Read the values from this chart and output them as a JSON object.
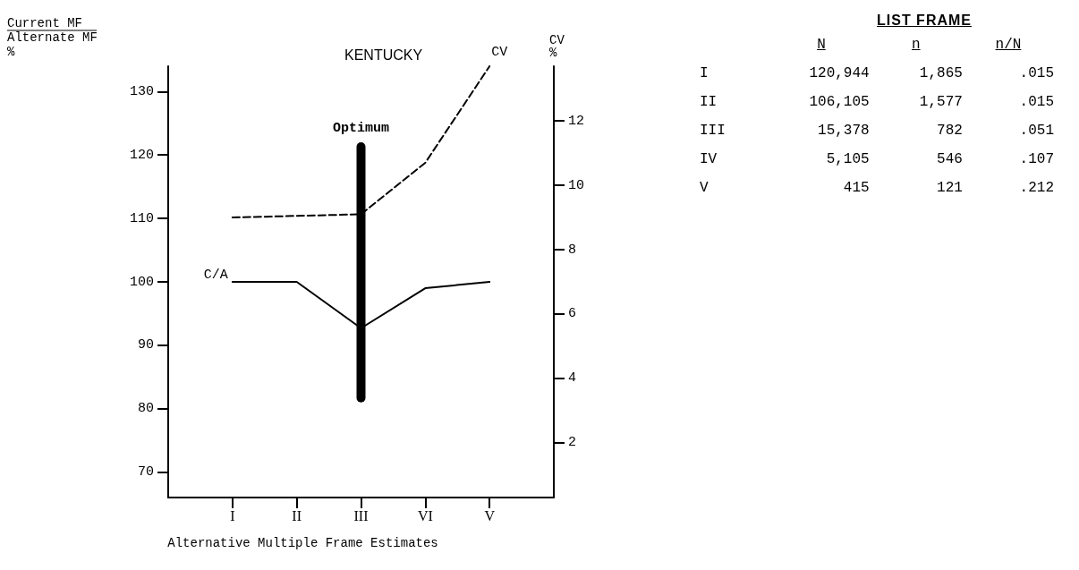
{
  "chart_data": [
    {
      "type": "line",
      "title": "KENTUCKY",
      "xlabel": "Alternative Multiple Frame Estimates",
      "ylabel": "Current MF\nAlternate MF\n%",
      "y2label": "CV\n%",
      "categories": [
        "I",
        "II",
        "III",
        "VI",
        "V"
      ],
      "series": [
        {
          "name": "C/A",
          "color": "#000000",
          "values": [
            100,
            100,
            92.7,
            99,
            100
          ]
        },
        {
          "name": "CV",
          "color": "#000000",
          "axis": "y2",
          "line_style": "dashed",
          "values": [
            9.0,
            9.05,
            9.1,
            10.7,
            13.7
          ]
        },
        {
          "name": "Optimum",
          "type": "bar",
          "color": "#000000",
          "values": [
            null,
            null,
            41,
            null,
            null
          ],
          "base": [
            null,
            null,
            81,
            null,
            null
          ]
        }
      ],
      "ylim": [
        66,
        134
      ],
      "yticks": [
        70,
        80,
        90,
        100,
        110,
        120,
        130
      ],
      "y2lim": [
        0.3,
        13.7
      ],
      "y2ticks": [
        2,
        4,
        6,
        8,
        10,
        12
      ],
      "marker": "none",
      "grid": false,
      "legend": false
    },
    {
      "type": "other",
      "title": "LIST FRAME",
      "annotations": [
        "N",
        "n",
        "n/N",
        "I",
        "120,944",
        "1,865",
        ".015",
        "II",
        "106,105",
        "1,577",
        ".015",
        "III",
        "15,378",
        "782",
        ".051",
        "IV",
        "5,105",
        "546",
        ".107",
        "V",
        "415",
        "121",
        ".212"
      ]
    }
  ]
}
